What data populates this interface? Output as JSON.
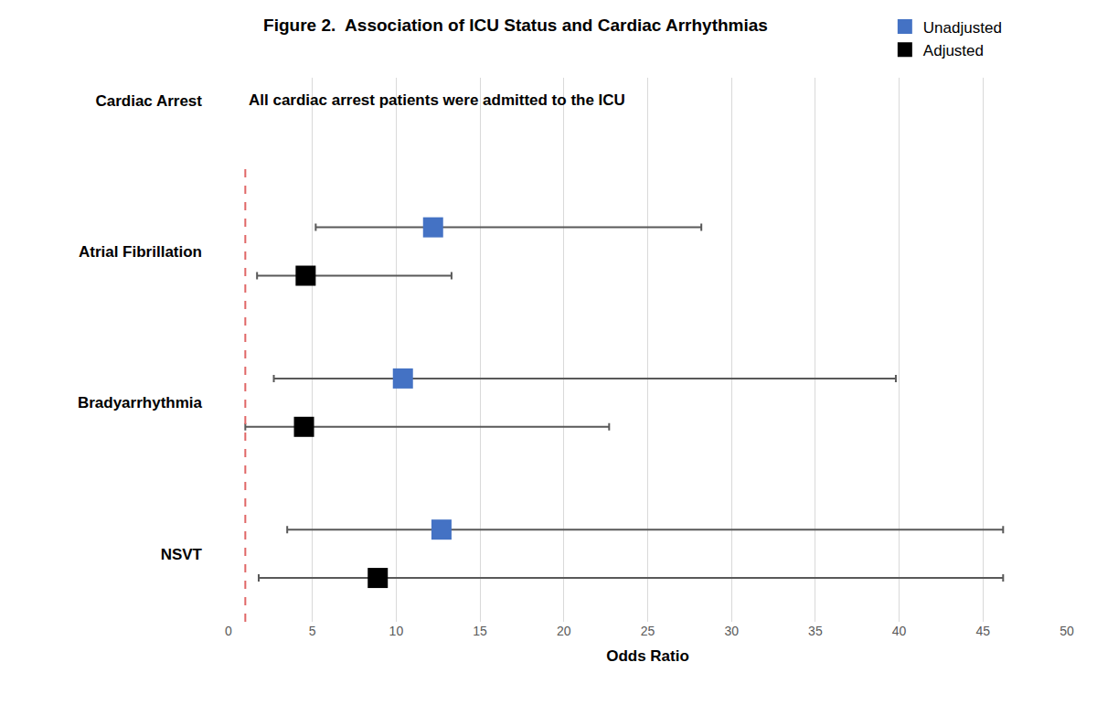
{
  "chart_data": {
    "type": "scatter",
    "title": "Figure 2.  Association of ICU Status and Cardiac Arrhythmias",
    "x_label": "Odds Ratio",
    "orientation": "horizontal",
    "marker": "square",
    "categories": [
      "Cardiac Arrest",
      "Atrial Fibrillation",
      "Bradyarrhythmia",
      "NSVT"
    ],
    "series": [
      {
        "name": "Unadjusted",
        "color": "#4472c4",
        "values": [
          null,
          12.2,
          10.4,
          12.7
        ],
        "ci_low": [
          null,
          5.2,
          2.7,
          3.5
        ],
        "ci_high": [
          null,
          28.2,
          39.8,
          46.2
        ]
      },
      {
        "name": "Adjusted",
        "color": "#000000",
        "values": [
          null,
          4.6,
          4.5,
          8.9
        ],
        "ci_low": [
          null,
          1.7,
          1.0,
          1.8
        ],
        "ci_high": [
          null,
          13.3,
          22.7,
          46.2
        ]
      }
    ],
    "annotations": [
      {
        "category": "Cardiac Arrest",
        "text": "All cardiac arrest patients were admitted to the ICU"
      }
    ],
    "reference_line": {
      "value": 1,
      "color": "#e06666",
      "line_style": "dash"
    },
    "xlim": [
      0,
      50
    ],
    "xticks": [
      0,
      5,
      10,
      15,
      20,
      25,
      30,
      35,
      40,
      45,
      50
    ],
    "grid": true,
    "legend": "top right"
  }
}
